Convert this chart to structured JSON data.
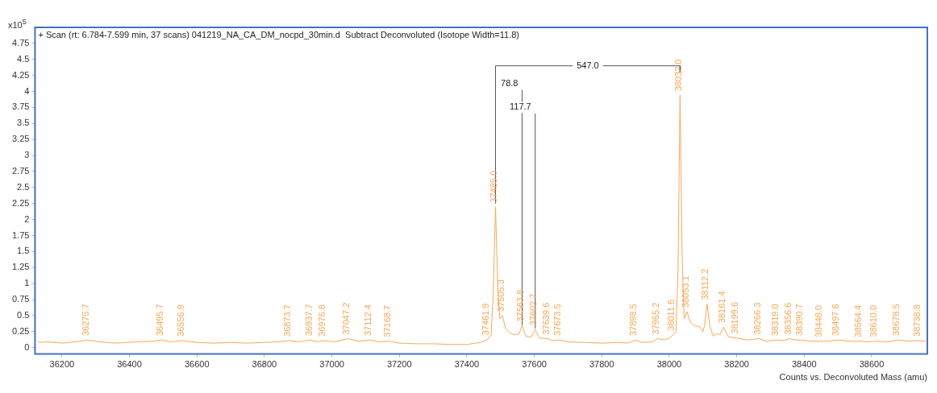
{
  "chart_data": {
    "type": "line",
    "title": "+ Scan (rt: 6.784-7.599 min, 37 scans) 041219_NA_CA_DM_nocpd_30min.d  Subtract Deconvoluted (Isotope Width=11.8)",
    "xlabel": "Counts vs. Deconvoluted Mass (amu)",
    "ylabel": "x10$^{5}$",
    "xlim": [
      36120,
      38765
    ],
    "ylim": [
      -0.1,
      5.0
    ],
    "xticks": [
      36200,
      36400,
      36600,
      36800,
      37000,
      37200,
      37400,
      37600,
      37800,
      38000,
      38200,
      38400,
      38600
    ],
    "yticks": [
      0,
      0.25,
      0.5,
      0.75,
      1,
      1.25,
      1.5,
      1.75,
      2,
      2.25,
      2.5,
      2.75,
      3,
      3.25,
      3.5,
      3.75,
      4,
      4.25,
      4.5,
      4.75
    ],
    "grid": false,
    "legend": false,
    "marker": "none",
    "line_style": "solid",
    "series": [
      {
        "color": "#f8a858",
        "x": [
          36130,
          36160,
          36200,
          36240,
          36275.7,
          36310,
          36360,
          36420,
          36470,
          36495.7,
          36520,
          36556.9,
          36600,
          36650,
          36700,
          36750,
          36800,
          36840,
          36873.7,
          36900,
          36937.7,
          36955,
          36976.8,
          37010,
          37047.2,
          37080,
          37112.4,
          37140,
          37168.7,
          37200,
          37250,
          37300,
          37350,
          37400,
          37440,
          37461.9,
          37472,
          37478,
          37485.0,
          37492,
          37498,
          37505.3,
          37515,
          37530,
          37545,
          37555,
          37563.8,
          37575,
          37590,
          37602.7,
          37615,
          37639.6,
          37655,
          37673.5,
          37700,
          37750,
          37800,
          37850,
          37880,
          37898.5,
          37920,
          37950,
          37965.2,
          37985,
          38000,
          38011.6,
          38020,
          38026,
          38032.0,
          38038,
          38044,
          38053.1,
          38062,
          38075,
          38090,
          38100,
          38105,
          38112.2,
          38120,
          38130,
          38140,
          38150,
          38161.4,
          38175,
          38199.6,
          38230,
          38266.3,
          38290,
          38319.0,
          38340,
          38356.6,
          38375,
          38390.7,
          38420,
          38448.0,
          38470,
          38497.6,
          38530,
          38564.4,
          38590,
          38610.0,
          38650,
          38678.5,
          38710,
          38738.8,
          38760
        ],
        "values": [
          0.08,
          0.09,
          0.07,
          0.09,
          0.12,
          0.09,
          0.07,
          0.09,
          0.1,
          0.12,
          0.09,
          0.11,
          0.08,
          0.07,
          0.08,
          0.07,
          0.08,
          0.09,
          0.11,
          0.09,
          0.12,
          0.09,
          0.11,
          0.09,
          0.14,
          0.1,
          0.12,
          0.09,
          0.1,
          0.07,
          0.06,
          0.06,
          0.05,
          0.05,
          0.08,
          0.13,
          0.2,
          0.8,
          2.2,
          0.9,
          0.45,
          0.5,
          0.3,
          0.22,
          0.2,
          0.22,
          0.34,
          0.18,
          0.16,
          0.28,
          0.15,
          0.14,
          0.11,
          0.12,
          0.09,
          0.08,
          0.07,
          0.08,
          0.07,
          0.12,
          0.08,
          0.09,
          0.14,
          0.12,
          0.15,
          0.2,
          0.25,
          1.2,
          3.94,
          1.5,
          0.45,
          0.56,
          0.4,
          0.34,
          0.33,
          0.25,
          0.35,
          0.68,
          0.35,
          0.18,
          0.22,
          0.2,
          0.32,
          0.17,
          0.15,
          0.12,
          0.14,
          0.1,
          0.12,
          0.11,
          0.14,
          0.12,
          0.12,
          0.1,
          0.1,
          0.1,
          0.12,
          0.1,
          0.1,
          0.09,
          0.1,
          0.09,
          0.12,
          0.1,
          0.11,
          0.1
        ]
      },
      {
        "type": "line",
        "name": "547.0",
        "color": "#555555",
        "x": [
          37485,
          37485,
          38032,
          38032
        ],
        "values": [
          2.25,
          4.4,
          4.4,
          4.3
        ]
      },
      {
        "type": "line",
        "name": "78.8",
        "color": "#555555",
        "x": [
          37563.8,
          37563.8
        ],
        "values": [
          0.35,
          4.02
        ]
      },
      {
        "type": "line",
        "name": "117.7",
        "color": "#555555",
        "x": [
          37602.7,
          37602.7
        ],
        "values": [
          0.3,
          3.65
        ]
      }
    ],
    "annotations": [
      {
        "text": "36275.7",
        "x": 36275.7,
        "y": 0.12
      },
      {
        "text": "36495.7",
        "x": 36495.7,
        "y": 0.12
      },
      {
        "text": "36556.9",
        "x": 36556.9,
        "y": 0.11
      },
      {
        "text": "36873.7",
        "x": 36873.7,
        "y": 0.11
      },
      {
        "text": "36937.7",
        "x": 36937.7,
        "y": 0.12
      },
      {
        "text": "36976.8",
        "x": 36976.8,
        "y": 0.11
      },
      {
        "text": "37047.2",
        "x": 37047.2,
        "y": 0.14
      },
      {
        "text": "37112.4",
        "x": 37112.4,
        "y": 0.12
      },
      {
        "text": "37168.7",
        "x": 37168.7,
        "y": 0.1
      },
      {
        "text": "37461.9",
        "x": 37461.9,
        "y": 0.13
      },
      {
        "text": "37485.0",
        "x": 37485.0,
        "y": 2.2
      },
      {
        "text": "37505.3",
        "x": 37505.3,
        "y": 0.5
      },
      {
        "text": "37563.8",
        "x": 37563.8,
        "y": 0.34
      },
      {
        "text": "37602.7",
        "x": 37602.7,
        "y": 0.28
      },
      {
        "text": "37639.6",
        "x": 37639.6,
        "y": 0.14
      },
      {
        "text": "37673.5",
        "x": 37673.5,
        "y": 0.12
      },
      {
        "text": "37898.5",
        "x": 37898.5,
        "y": 0.12
      },
      {
        "text": "37965.2",
        "x": 37965.2,
        "y": 0.14
      },
      {
        "text": "38011.6",
        "x": 38011.6,
        "y": 0.2
      },
      {
        "text": "38032.0",
        "x": 38032.0,
        "y": 3.94
      },
      {
        "text": "38053.1",
        "x": 38053.1,
        "y": 0.56
      },
      {
        "text": "38112.2",
        "x": 38112.2,
        "y": 0.68
      },
      {
        "text": "38161.4",
        "x": 38161.4,
        "y": 0.32
      },
      {
        "text": "38199.6",
        "x": 38199.6,
        "y": 0.15
      },
      {
        "text": "38266.3",
        "x": 38266.3,
        "y": 0.14
      },
      {
        "text": "38319.0",
        "x": 38319.0,
        "y": 0.12
      },
      {
        "text": "38356.6",
        "x": 38356.6,
        "y": 0.14
      },
      {
        "text": "38390.7",
        "x": 38390.7,
        "y": 0.12
      },
      {
        "text": "38448.0",
        "x": 38448.0,
        "y": 0.1
      },
      {
        "text": "38497.6",
        "x": 38497.6,
        "y": 0.12
      },
      {
        "text": "38564.4",
        "x": 38564.4,
        "y": 0.1
      },
      {
        "text": "38610.0",
        "x": 38610.0,
        "y": 0.1
      },
      {
        "text": "38678.5",
        "x": 38678.5,
        "y": 0.12
      },
      {
        "text": "38738.8",
        "x": 38738.8,
        "y": 0.11
      }
    ]
  }
}
